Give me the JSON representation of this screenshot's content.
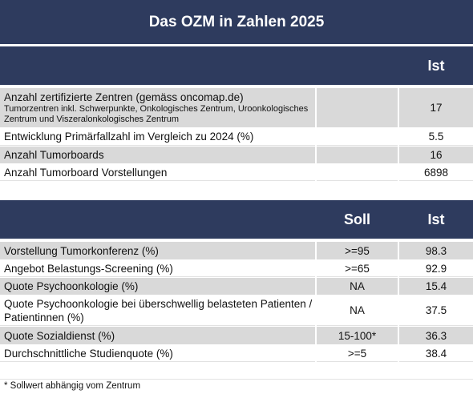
{
  "title": "Das OZM in Zahlen 2025",
  "table1": {
    "columns": [
      "Ist"
    ],
    "rows": [
      {
        "label": "Anzahl zertifizierte Zentren (gemäss oncomap.de)",
        "sublabel": "Tumorzentren inkl. Schwerpunkte, Onkologisches Zentrum, Uroonkologisches Zentrum und Viszeralonkologisches Zentrum",
        "ist": 17
      },
      {
        "label": "Entwicklung Primärfallzahl im Vergleich zu 2024 (%)",
        "ist": 5.5
      },
      {
        "label": "Anzahl Tumorboards",
        "ist": 16
      },
      {
        "label": "Anzahl Tumorboard Vorstellungen",
        "ist": 6898
      }
    ]
  },
  "table2": {
    "columns": [
      "Soll",
      "Ist"
    ],
    "rows": [
      {
        "label": "Vorstellung Tumorkonferenz (%)",
        "soll": ">=95",
        "ist": 98.3
      },
      {
        "label": "Angebot Belastungs-Screening (%)",
        "soll": ">=65",
        "ist": 92.9
      },
      {
        "label": "Quote Psychoonkologie  (%)",
        "soll": "NA",
        "ist": 15.4
      },
      {
        "label": "Quote Psychoonkologie bei überschwellig belasteten Patienten / Patientinnen  (%)",
        "soll": "NA",
        "ist": 37.5
      },
      {
        "label": "Quote Sozialdienst (%)",
        "soll": "15-100*",
        "ist": 36.3
      },
      {
        "label": "Durchschnittliche Studienquote (%)",
        "soll": ">=5",
        "ist": 38.4
      }
    ]
  },
  "footnote": "* Sollwert abhängig vom Zentrum"
}
